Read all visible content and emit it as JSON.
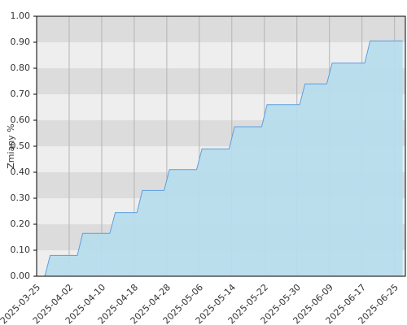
{
  "chart_data": {
    "type": "area",
    "ylabel": "Zmiany %",
    "categories": [
      "2025-03-25",
      null,
      null,
      null,
      null,
      null,
      "2025-04-02",
      null,
      null,
      null,
      null,
      null,
      "2025-04-10",
      null,
      null,
      null,
      null,
      null,
      "2025-04-18",
      null,
      null,
      null,
      null,
      null,
      "2025-04-28",
      null,
      null,
      null,
      null,
      null,
      "2025-05-06",
      null,
      null,
      null,
      null,
      null,
      "2025-05-14",
      null,
      null,
      null,
      null,
      null,
      "2025-05-22",
      null,
      null,
      null,
      null,
      null,
      "2025-05-30",
      null,
      null,
      null,
      null,
      null,
      "2025-06-09",
      null,
      null,
      null,
      null,
      null,
      "2025-06-17",
      null,
      null,
      null,
      null,
      null,
      "2025-06-25",
      null
    ],
    "values": [
      null,
      0,
      0.08,
      0.08,
      0.08,
      0.08,
      0.08,
      0.08,
      0.165,
      0.165,
      0.165,
      0.165,
      0.165,
      0.165,
      0.245,
      0.245,
      0.245,
      0.245,
      0.245,
      0.33,
      0.33,
      0.33,
      0.33,
      0.33,
      0.41,
      0.41,
      0.41,
      0.41,
      0.41,
      0.41,
      0.49,
      0.49,
      0.49,
      0.49,
      0.49,
      0.49,
      0.575,
      0.575,
      0.575,
      0.575,
      0.575,
      0.575,
      0.66,
      0.66,
      0.66,
      0.66,
      0.66,
      0.66,
      0.66,
      0.74,
      0.74,
      0.74,
      0.74,
      0.74,
      0.82,
      0.82,
      0.82,
      0.82,
      0.82,
      0.82,
      0.82,
      0.905,
      0.905,
      0.905,
      0.905,
      0.905,
      0.905,
      0.905
    ],
    "color": "#5b9fe0",
    "fill": "#b7dcec",
    "ylim": [
      0,
      1
    ],
    "yticks": [
      {
        "value": 0,
        "label": "0.00"
      },
      {
        "value": 0.1,
        "label": "0.10"
      },
      {
        "value": 0.2,
        "label": "0.20"
      },
      {
        "value": 0.3,
        "label": "0.30"
      },
      {
        "value": 0.4,
        "label": "0.40"
      },
      {
        "value": 0.5,
        "label": "0.50"
      },
      {
        "value": 0.6,
        "label": "0.60"
      },
      {
        "value": 0.7,
        "label": "0.70"
      },
      {
        "value": 0.8,
        "label": "0.80"
      },
      {
        "value": 0.9,
        "label": "0.90"
      },
      {
        "value": 1,
        "label": "1.00"
      }
    ],
    "grid": true
  }
}
